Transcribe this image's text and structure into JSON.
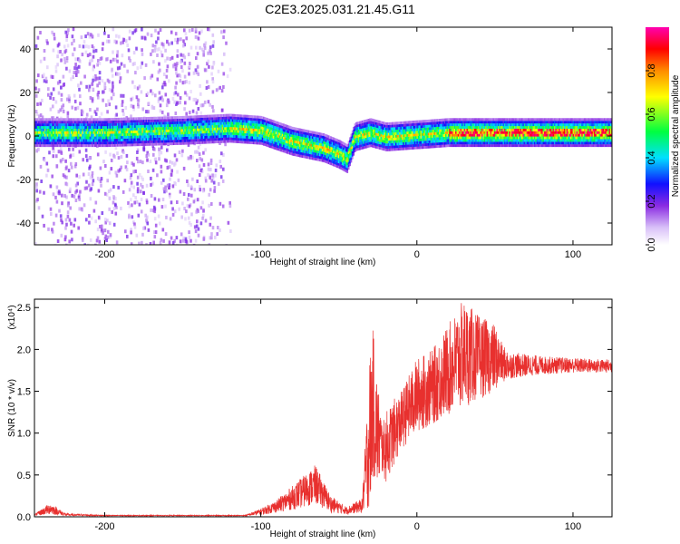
{
  "title": "C2E3.2025.031.21.45.G11",
  "chart_data": [
    {
      "type": "heatmap",
      "xlabel": "Height of straight line (km)",
      "ylabel": "Frequency (Hz)",
      "xlim": [
        -245,
        125
      ],
      "ylim": [
        -50,
        50
      ],
      "xticks": [
        -200,
        -100,
        0,
        100
      ],
      "yticks": [
        -40,
        -20,
        0,
        20,
        40
      ],
      "colorbar": {
        "label": "Normalized spectral amplitude",
        "range": [
          0,
          1
        ],
        "ticks": [
          0.0,
          0.2,
          0.4,
          0.6,
          0.8
        ]
      },
      "ridge": {
        "x": [
          -245,
          -200,
          -150,
          -120,
          -100,
          -80,
          -60,
          -50,
          -45,
          -40,
          -30,
          -20,
          0,
          20,
          50,
          100,
          125
        ],
        "y": [
          2,
          2,
          3,
          4,
          3,
          -2,
          -5,
          -8,
          -10,
          0,
          2,
          0,
          1,
          2,
          2,
          2,
          2
        ]
      }
    },
    {
      "type": "line",
      "xlabel": "Height of straight line (km)",
      "ylabel": "SNR (10 * v/v)",
      "multiplier": "(x10⁴)",
      "xlim": [
        -245,
        125
      ],
      "ylim": [
        0,
        2.6
      ],
      "xticks": [
        -200,
        -100,
        0,
        100
      ],
      "yticks": [
        0.0,
        0.5,
        1.0,
        1.5,
        2.0,
        2.5
      ],
      "series_color": "#e8302e",
      "envelope": {
        "x": [
          -245,
          -235,
          -225,
          -200,
          -150,
          -110,
          -100,
          -90,
          -75,
          -65,
          -55,
          -45,
          -35,
          -30,
          -28,
          -26,
          -22,
          -20,
          -15,
          -10,
          -5,
          0,
          10,
          20,
          30,
          40,
          50,
          55,
          60,
          80,
          100,
          125
        ],
        "low": [
          0.01,
          0.03,
          0.01,
          0.01,
          0.01,
          0.01,
          0.02,
          0.05,
          0.1,
          0.15,
          0.05,
          0.03,
          0.05,
          0.1,
          0.5,
          0.3,
          0.5,
          0.4,
          0.6,
          0.8,
          0.9,
          1.0,
          1.1,
          1.2,
          1.3,
          1.4,
          1.5,
          1.6,
          1.65,
          1.7,
          1.72,
          1.72
        ],
        "high": [
          0.03,
          0.17,
          0.04,
          0.02,
          0.02,
          0.02,
          0.1,
          0.2,
          0.45,
          0.62,
          0.25,
          0.12,
          0.22,
          2.0,
          2.25,
          1.8,
          1.1,
          1.25,
          1.4,
          1.5,
          1.7,
          1.9,
          2.0,
          2.3,
          2.6,
          2.4,
          2.3,
          2.05,
          1.97,
          1.92,
          1.9,
          1.88
        ]
      }
    }
  ]
}
